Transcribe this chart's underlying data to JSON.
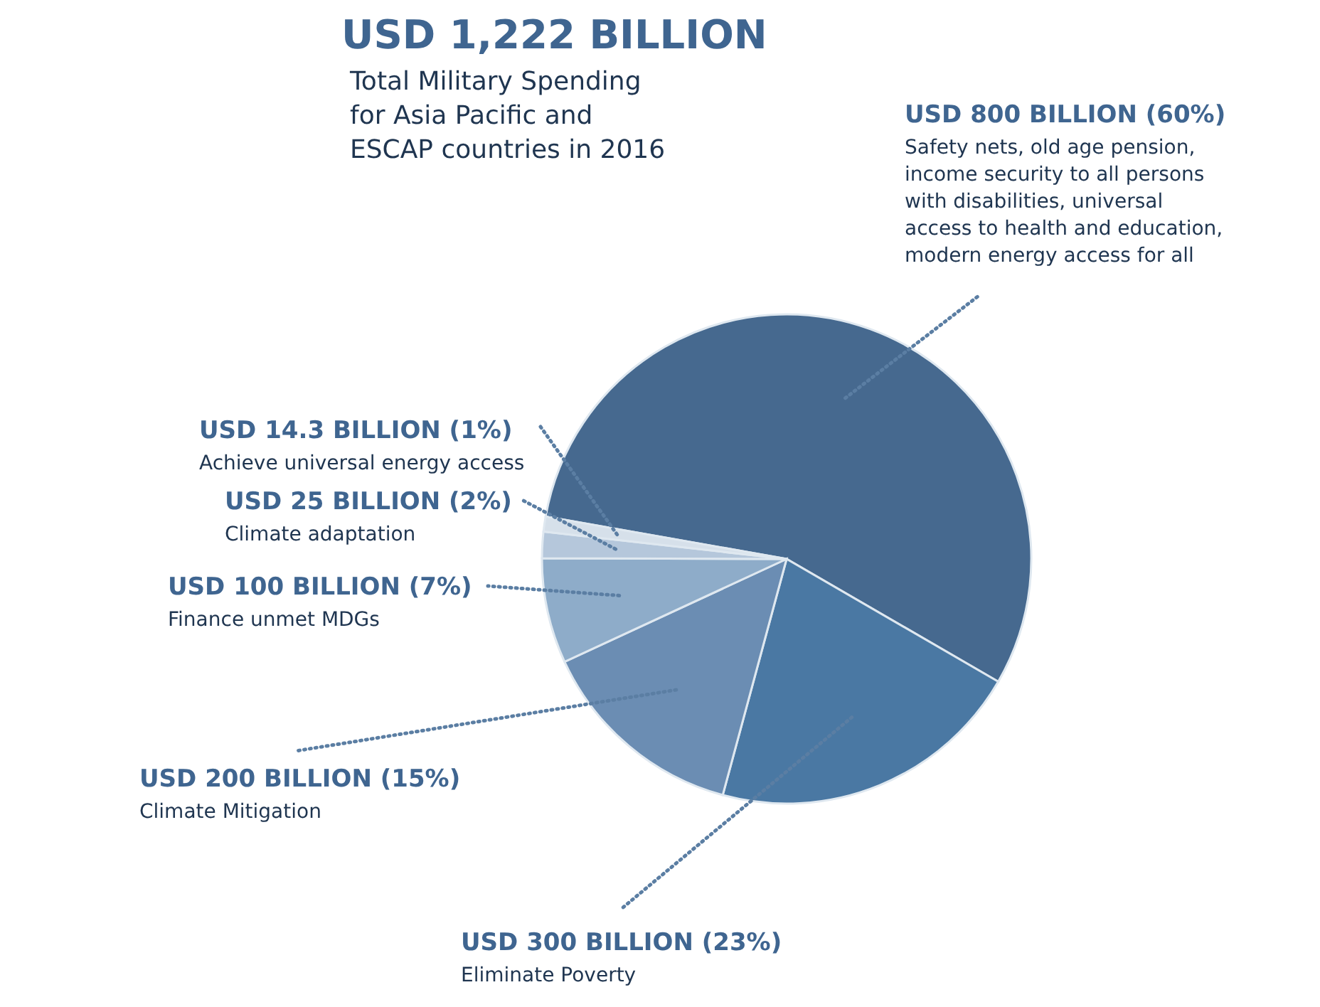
{
  "chart_data": {
    "type": "pie",
    "title": "USD 1,222 BILLION",
    "subtitle": "Total Military Spending for Asia Pacific and ESCAP countries in 2016",
    "categories": [
      "Safety nets, old age pension, income security to all persons with disabilities, universal access to health and education, modern energy access for all",
      "Eliminate Poverty",
      "Climate Mitigation",
      "Finance unmet MDGs",
      "Climate adaptation",
      "Achieve universal energy access"
    ],
    "values": [
      800,
      300,
      200,
      100,
      25,
      14.3
    ],
    "value_labels": [
      "USD 800 BILLION (60%)",
      "USD 300 BILLION (23%)",
      "USD 200 BILLION (15%)",
      "USD 100 BILLION (7%)",
      "USD 25 BILLION (2%)",
      "USD 14.3 BILLION (1%)"
    ],
    "colors": [
      "#46698f",
      "#4a78a3",
      "#6b8db3",
      "#8eacc9",
      "#b5c7db",
      "#d6e0ea"
    ]
  }
}
